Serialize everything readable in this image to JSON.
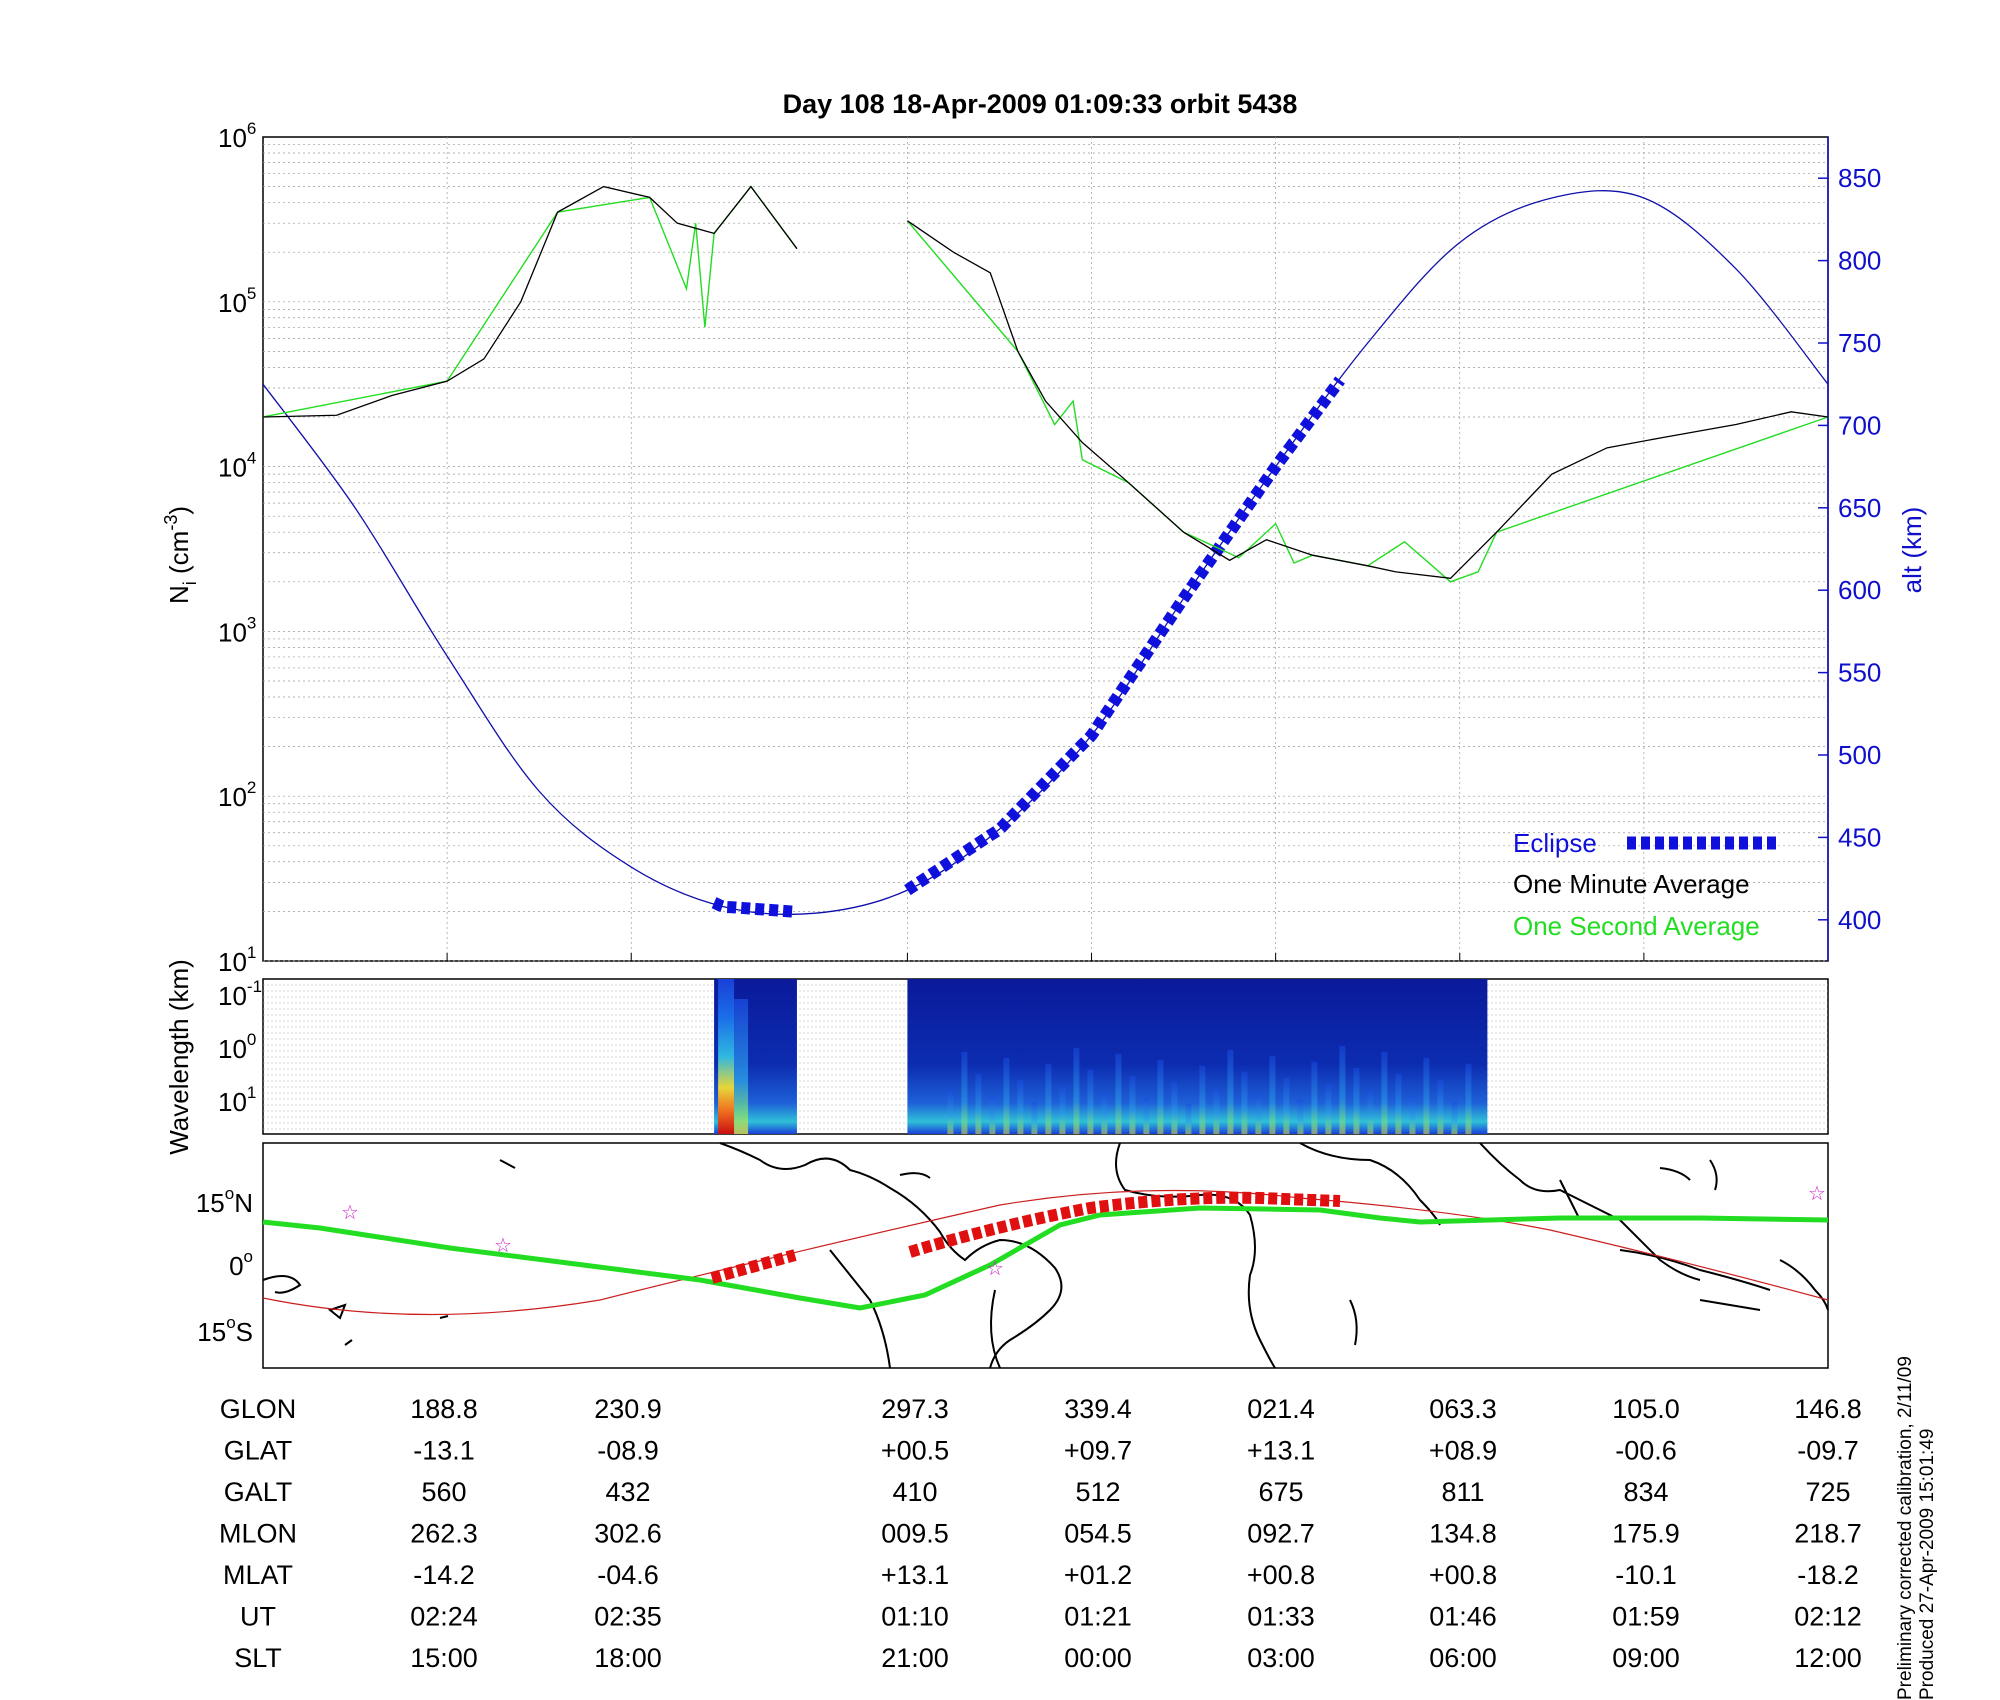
{
  "title": "Day 108  18-Apr-2009 01:09:33   orbit 5438",
  "top_panel": {
    "ylabel_left": "N",
    "ylabel_left_sub": "i",
    "ylabel_left_units": "(cm",
    "ylabel_left_exp": "-3",
    "ylabel_left_close": ")",
    "ylabel_right": "alt (km)",
    "left_ticks": [
      {
        "base": "10",
        "exp": "6"
      },
      {
        "base": "10",
        "exp": "5"
      },
      {
        "base": "10",
        "exp": "4"
      },
      {
        "base": "10",
        "exp": "3"
      },
      {
        "base": "10",
        "exp": "2"
      },
      {
        "base": "10",
        "exp": "1"
      }
    ],
    "right_ticks": [
      "850",
      "800",
      "750",
      "700",
      "650",
      "600",
      "550",
      "500",
      "450",
      "400"
    ],
    "legend": [
      {
        "label": "Eclipse",
        "color": "#1010dd"
      },
      {
        "label": "One Minute Average",
        "color": "#000000"
      },
      {
        "label": "One Second Average",
        "color": "#22dd22"
      }
    ]
  },
  "spectrogram_panel": {
    "ylabel": "Wavelength (km)",
    "ticks": [
      {
        "base": "10",
        "exp": "-1"
      },
      {
        "base": "10",
        "exp": "0"
      },
      {
        "base": "10",
        "exp": "1"
      }
    ]
  },
  "map_panel": {
    "lat_ticks": [
      {
        "num": "15",
        "unit": "N"
      },
      {
        "num": "0",
        "unit": ""
      },
      {
        "num": "15",
        "unit": "S"
      }
    ],
    "degree_sign": "o"
  },
  "table": {
    "rows": [
      {
        "label": "GLON",
        "values": [
          "188.8",
          "230.9",
          "297.3",
          "339.4",
          "021.4",
          "063.3",
          "105.0",
          "146.8"
        ]
      },
      {
        "label": "GLAT",
        "values": [
          "-13.1",
          "-08.9",
          "+00.5",
          "+09.7",
          "+13.1",
          "+08.9",
          "-00.6",
          "-09.7"
        ]
      },
      {
        "label": "GALT",
        "values": [
          "560",
          "432",
          "410",
          "512",
          "675",
          "811",
          "834",
          "725"
        ]
      },
      {
        "label": "MLON",
        "values": [
          "262.3",
          "302.6",
          "009.5",
          "054.5",
          "092.7",
          "134.8",
          "175.9",
          "218.7"
        ]
      },
      {
        "label": "MLAT",
        "values": [
          "-14.2",
          "-04.6",
          "+13.1",
          "+01.2",
          "+00.8",
          "+00.8",
          "-10.1",
          "-18.2"
        ]
      },
      {
        "label": "UT",
        "values": [
          "02:24",
          "02:35",
          "01:10",
          "01:21",
          "01:33",
          "01:46",
          "01:59",
          "02:12"
        ]
      },
      {
        "label": "SLT",
        "values": [
          "15:00",
          "18:00",
          "21:00",
          "00:00",
          "03:00",
          "06:00",
          "09:00",
          "12:00"
        ]
      }
    ]
  },
  "side_note": {
    "line1": "Preliminary corrected calibration, 2/11/09",
    "line2": "Produced 27-Apr-2009 15:01:49"
  },
  "chart_data": [
    {
      "type": "line",
      "title": "Day 108  18-Apr-2009 01:09:33   orbit 5438",
      "ylabel": "Ni (cm-3)",
      "y2label": "alt (km)",
      "yscale": "log",
      "ylim": [
        10,
        1000000
      ],
      "y2lim": [
        375,
        875
      ],
      "x": [
        0,
        0.5,
        1,
        1.5,
        2,
        2.5,
        3,
        3.5,
        4,
        4.5,
        5,
        5.5,
        6,
        6.5,
        7,
        7.5,
        8,
        8.5
      ],
      "x_tick_positions": [
        0,
        1,
        2,
        3.5,
        4.5,
        5.5,
        6.5,
        7.5,
        8.5
      ],
      "grid": true,
      "series": [
        {
          "name": "One Minute Average",
          "color": "#000000",
          "segments": [
            [
              [
                0,
                20000
              ],
              [
                0.4,
                20500
              ],
              [
                0.7,
                27000
              ],
              [
                1.0,
                33000
              ],
              [
                1.2,
                45000
              ],
              [
                1.4,
                100000
              ],
              [
                1.6,
                350000
              ],
              [
                1.85,
                500000
              ],
              [
                2.1,
                430000
              ],
              [
                2.25,
                300000
              ],
              [
                2.45,
                260000
              ],
              [
                2.65,
                500000
              ],
              [
                2.9,
                210000
              ]
            ],
            [
              [
                3.5,
                310000
              ],
              [
                3.75,
                200000
              ],
              [
                3.95,
                150000
              ],
              [
                4.1,
                50000
              ],
              [
                4.25,
                25000
              ],
              [
                4.45,
                14000
              ],
              [
                4.7,
                8000
              ],
              [
                5.0,
                4000
              ],
              [
                5.25,
                2700
              ],
              [
                5.45,
                3600
              ],
              [
                5.7,
                2900
              ],
              [
                6.0,
                2500
              ],
              [
                6.15,
                2300
              ],
              [
                6.45,
                2100
              ],
              [
                6.7,
                4000
              ],
              [
                7.0,
                9000
              ],
              [
                7.3,
                13000
              ],
              [
                7.6,
                15000
              ],
              [
                8.0,
                18000
              ],
              [
                8.3,
                21500
              ],
              [
                8.5,
                20000
              ]
            ]
          ]
        },
        {
          "name": "One Second Average",
          "color": "#22dd22",
          "segments": [
            [
              [
                0,
                20000
              ],
              [
                1.0,
                33000
              ],
              [
                1.6,
                350000
              ],
              [
                2.1,
                430000
              ],
              [
                2.3,
                120000
              ],
              [
                2.35,
                300000
              ],
              [
                2.4,
                70000
              ],
              [
                2.45,
                260000
              ],
              [
                2.65,
                500000
              ],
              [
                2.9,
                210000
              ]
            ],
            [
              [
                3.5,
                310000
              ],
              [
                4.1,
                50000
              ],
              [
                4.3,
                18000
              ],
              [
                4.4,
                25000
              ],
              [
                4.45,
                11000
              ],
              [
                4.7,
                8000
              ],
              [
                5.0,
                4000
              ],
              [
                5.3,
                2800
              ],
              [
                5.5,
                4500
              ],
              [
                5.6,
                2600
              ],
              [
                5.7,
                2900
              ],
              [
                6.0,
                2500
              ],
              [
                6.2,
                3500
              ],
              [
                6.45,
                2000
              ],
              [
                6.6,
                2300
              ],
              [
                6.7,
                4000
              ],
              [
                8.5,
                20000
              ]
            ]
          ]
        },
        {
          "name": "alt",
          "axis": "right",
          "color": "#1010aa",
          "x": [
            0,
            0.5,
            1,
            1.5,
            2,
            2.5,
            3,
            3.5,
            4,
            4.5,
            5,
            5.5,
            6,
            6.5,
            7,
            7.5,
            8,
            8.5
          ],
          "values": [
            725,
            650,
            560,
            478,
            432,
            408,
            404,
            418,
            455,
            512,
            595,
            675,
            750,
            811,
            838,
            838,
            795,
            725
          ]
        },
        {
          "name": "Eclipse",
          "axis": "right",
          "color": "#1010dd",
          "x_ranges": [
            [
              2.45,
              2.9
            ],
            [
              3.5,
              5.85
            ]
          ]
        }
      ]
    },
    {
      "type": "heatmap",
      "ylabel": "Wavelength (km)",
      "yscale": "log",
      "data_ranges": [
        [
          2.45,
          2.9
        ],
        [
          3.5,
          6.65
        ]
      ],
      "colormap": "jet"
    }
  ]
}
